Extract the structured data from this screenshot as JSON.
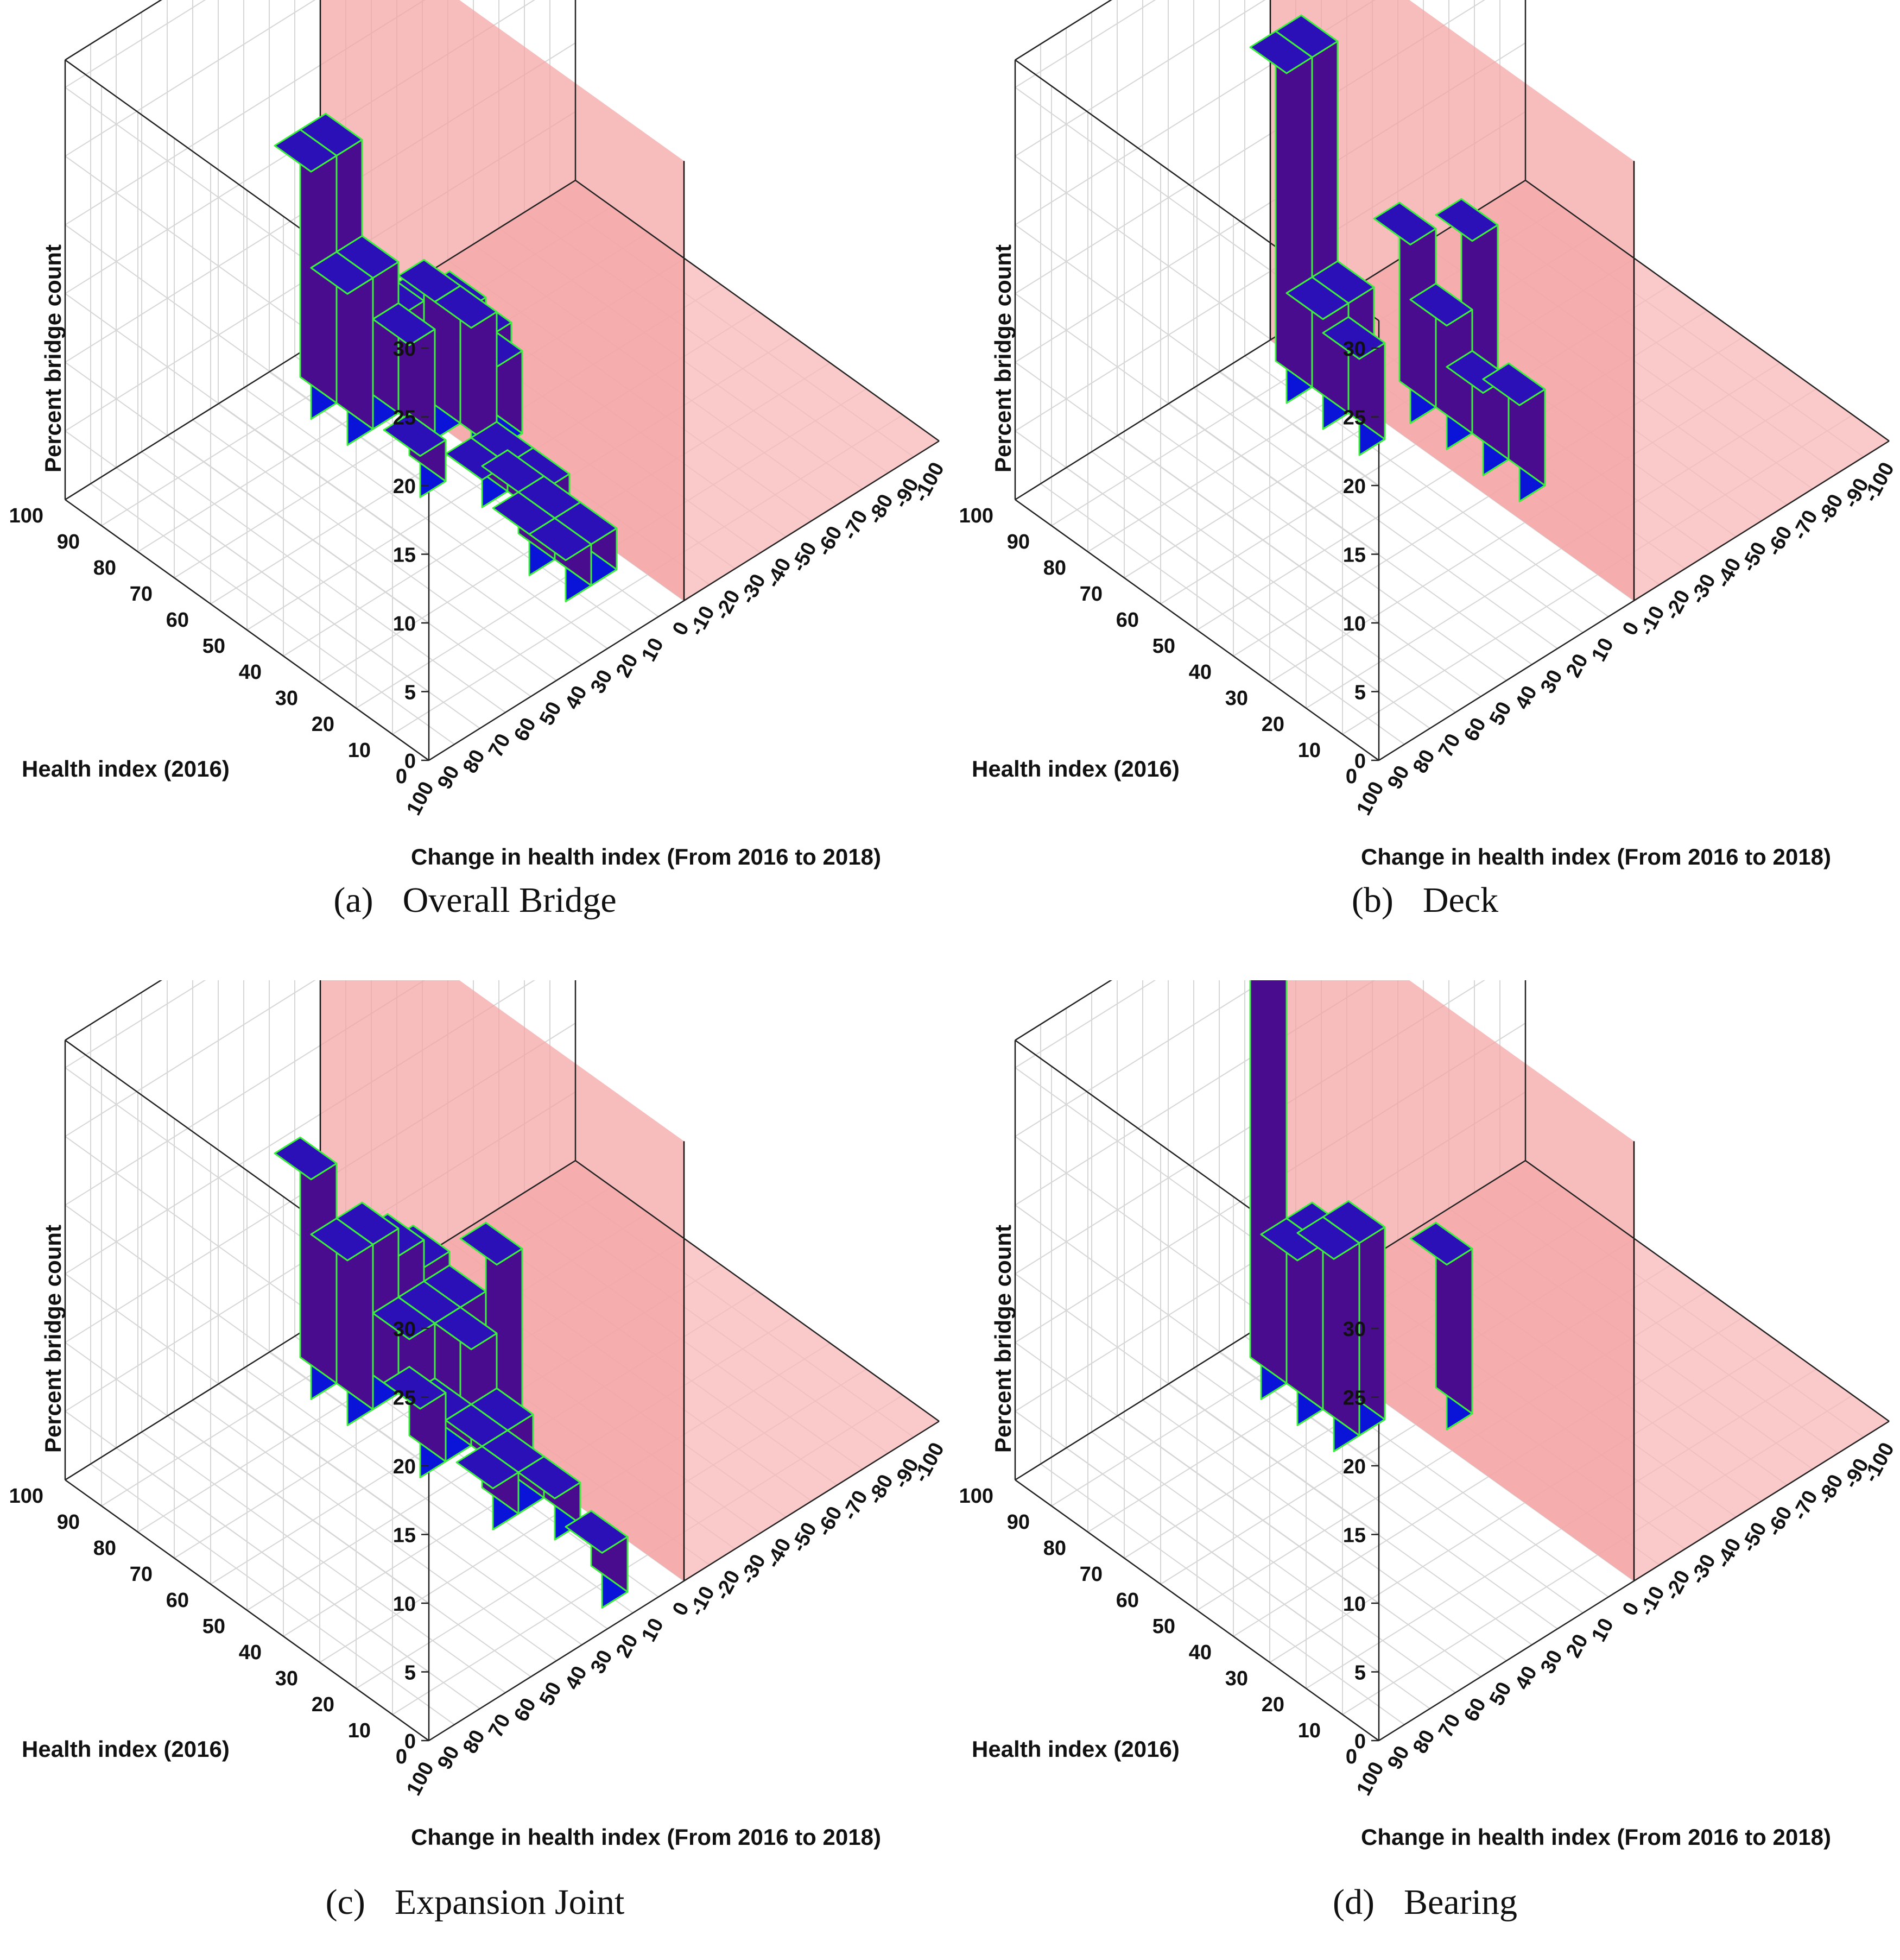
{
  "chart_data": [
    {
      "type": "bar3d",
      "panel": "(a)",
      "caption": "Overall Bridge",
      "xlabel": "Change in health index (From 2016 to 2018)",
      "ylabel": "Health index (2016)",
      "zlabel": "Percent bridge count",
      "x_ticks": [
        "100",
        "90",
        "80",
        "70",
        "60",
        "50",
        "40",
        "30",
        "20",
        "10",
        "0",
        "-10",
        "-20",
        "-30",
        "-40",
        "-50",
        "-60",
        "-70",
        "-80",
        "-90",
        "-100"
      ],
      "y_ticks": [
        "0",
        "10",
        "20",
        "30",
        "40",
        "50",
        "60",
        "70",
        "80",
        "90",
        "100"
      ],
      "z_ticks": [
        "0",
        "5",
        "10",
        "15",
        "20",
        "25",
        "30"
      ],
      "zlim": [
        0,
        30
      ],
      "plane_x": 0,
      "bars": [
        {
          "x": 20,
          "y": 90,
          "z": 18
        },
        {
          "x": 10,
          "y": 90,
          "z": 18
        },
        {
          "x": 20,
          "y": 80,
          "z": 11
        },
        {
          "x": 10,
          "y": 80,
          "z": 11
        },
        {
          "x": 0,
          "y": 80,
          "z": 7
        },
        {
          "x": -10,
          "y": 80,
          "z": 6
        },
        {
          "x": 10,
          "y": 70,
          "z": 8
        },
        {
          "x": 0,
          "y": 70,
          "z": 10
        },
        {
          "x": -10,
          "y": 70,
          "z": 8
        },
        {
          "x": -20,
          "y": 70,
          "z": 5
        },
        {
          "x": 20,
          "y": 60,
          "z": 3
        },
        {
          "x": 0,
          "y": 60,
          "z": 10
        },
        {
          "x": -10,
          "y": 60,
          "z": 6
        },
        {
          "x": 10,
          "y": 50,
          "z": 2
        },
        {
          "x": 0,
          "y": 50,
          "z": 2
        },
        {
          "x": 10,
          "y": 40,
          "z": 3
        },
        {
          "x": 0,
          "y": 40,
          "z": 2
        },
        {
          "x": 20,
          "y": 30,
          "z": 3
        },
        {
          "x": 10,
          "y": 30,
          "z": 3
        },
        {
          "x": 20,
          "y": 20,
          "z": 3
        },
        {
          "x": 10,
          "y": 20,
          "z": 3
        }
      ]
    },
    {
      "type": "bar3d",
      "panel": "(b)",
      "caption": "Deck",
      "xlabel": "Change in health index (From 2016 to 2018)",
      "ylabel": "Health index (2016)",
      "zlabel": "Percent bridge count",
      "x_ticks": [
        "100",
        "90",
        "80",
        "70",
        "60",
        "50",
        "40",
        "30",
        "20",
        "10",
        "0",
        "-10",
        "-20",
        "-30",
        "-40",
        "-50",
        "-60",
        "-70",
        "-80",
        "-90",
        "-100"
      ],
      "y_ticks": [
        "0",
        "10",
        "20",
        "30",
        "40",
        "50",
        "60",
        "70",
        "80",
        "90",
        "100"
      ],
      "z_ticks": [
        "0",
        "5",
        "10",
        "15",
        "20",
        "25",
        "30"
      ],
      "zlim": [
        0,
        30
      ],
      "plane_x": 0,
      "bars": [
        {
          "x": 10,
          "y": 90,
          "z": 24
        },
        {
          "x": 0,
          "y": 90,
          "z": 24
        },
        {
          "x": 10,
          "y": 80,
          "z": 8
        },
        {
          "x": 0,
          "y": 80,
          "z": 8
        },
        {
          "x": 10,
          "y": 70,
          "z": 7
        },
        {
          "x": -10,
          "y": 70,
          "z": 13
        },
        {
          "x": -10,
          "y": 60,
          "z": 9
        },
        {
          "x": -10,
          "y": 50,
          "z": 6
        },
        {
          "x": -20,
          "y": 60,
          "z": 14
        },
        {
          "x": -10,
          "y": 40,
          "z": 7
        }
      ]
    },
    {
      "type": "bar3d",
      "panel": "(c)",
      "caption": "Expansion Joint",
      "xlabel": "Change in health index (From 2016 to 2018)",
      "ylabel": "Health index (2016)",
      "zlabel": "Percent bridge count",
      "x_ticks": [
        "100",
        "90",
        "80",
        "70",
        "60",
        "50",
        "40",
        "30",
        "20",
        "10",
        "0",
        "-10",
        "-20",
        "-30",
        "-40",
        "-50",
        "-60",
        "-70",
        "-80",
        "-90",
        "-100"
      ],
      "y_ticks": [
        "0",
        "10",
        "20",
        "30",
        "40",
        "50",
        "60",
        "70",
        "80",
        "90",
        "100"
      ],
      "z_ticks": [
        "0",
        "5",
        "10",
        "15",
        "20",
        "25",
        "30"
      ],
      "zlim": [
        0,
        30
      ],
      "plane_x": 0,
      "bars": [
        {
          "x": 20,
          "y": 90,
          "z": 16
        },
        {
          "x": 20,
          "y": 80,
          "z": 12
        },
        {
          "x": 10,
          "y": 80,
          "z": 12
        },
        {
          "x": 0,
          "y": 80,
          "z": 10
        },
        {
          "x": -10,
          "y": 80,
          "z": 8
        },
        {
          "x": 10,
          "y": 70,
          "z": 7
        },
        {
          "x": 0,
          "y": 70,
          "z": 7
        },
        {
          "x": -10,
          "y": 70,
          "z": 7
        },
        {
          "x": 20,
          "y": 60,
          "z": 5
        },
        {
          "x": 10,
          "y": 60,
          "z": 3
        },
        {
          "x": 0,
          "y": 60,
          "z": 7
        },
        {
          "x": -10,
          "y": 60,
          "z": 12
        },
        {
          "x": 10,
          "y": 50,
          "z": 3
        },
        {
          "x": 0,
          "y": 50,
          "z": 3
        },
        {
          "x": 20,
          "y": 40,
          "z": 3
        },
        {
          "x": 10,
          "y": 40,
          "z": 3
        },
        {
          "x": 10,
          "y": 30,
          "z": 3
        },
        {
          "x": 20,
          "y": 10,
          "z": 4
        }
      ]
    },
    {
      "type": "bar3d",
      "panel": "(d)",
      "caption": "Bearing",
      "xlabel": "Change in health index (From 2016 to 2018)",
      "ylabel": "Health index (2016)",
      "zlabel": "Percent bridge count",
      "x_ticks": [
        "100",
        "90",
        "80",
        "70",
        "60",
        "50",
        "40",
        "30",
        "20",
        "10",
        "0",
        "-10",
        "-20",
        "-30",
        "-40",
        "-50",
        "-60",
        "-70",
        "-80",
        "-90",
        "-100"
      ],
      "y_ticks": [
        "0",
        "10",
        "20",
        "30",
        "40",
        "50",
        "60",
        "70",
        "80",
        "90",
        "100"
      ],
      "z_ticks": [
        "0",
        "5",
        "10",
        "15",
        "20",
        "25",
        "30"
      ],
      "zlim": [
        0,
        30
      ],
      "plane_x": 0,
      "bars": [
        {
          "x": 20,
          "y": 90,
          "z": 33
        },
        {
          "x": 20,
          "y": 80,
          "z": 12
        },
        {
          "x": 10,
          "y": 80,
          "z": 12
        },
        {
          "x": 20,
          "y": 70,
          "z": 14
        },
        {
          "x": 10,
          "y": 70,
          "z": 14
        },
        {
          "x": -10,
          "y": 60,
          "z": 12
        }
      ]
    }
  ],
  "colors": {
    "bar_front": "#0a14d8",
    "bar_side": "#4a0c8e",
    "bar_top": "#2a10b6",
    "bar_edge": "#3ef03e",
    "plane": "#f4a2a2",
    "plane_floor": "#f8b7b7",
    "grid": "#d6d6d6",
    "axis": "#222222"
  }
}
